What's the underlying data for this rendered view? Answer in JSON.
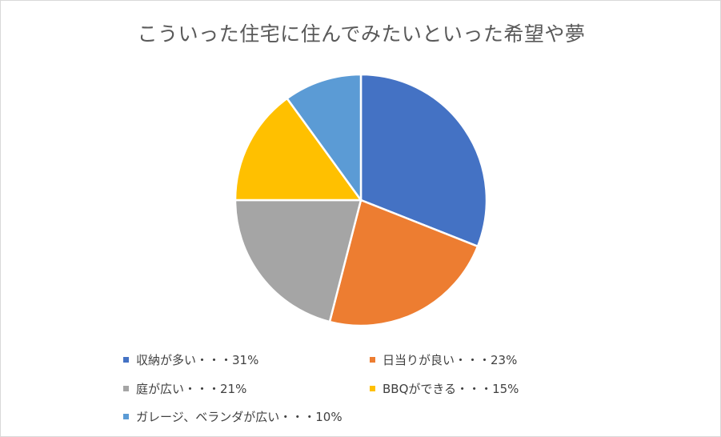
{
  "chart_data": {
    "type": "pie",
    "title": "こういった住宅に住んでみたいといった希望や夢",
    "categories": [
      "収納が多い・・・31%",
      "日当りが良い・・・23%",
      "庭が広い・・・21%",
      "BBQができる・・・15%",
      "ガレージ、ベランダが広い・・・10%"
    ],
    "values": [
      31,
      23,
      21,
      15,
      10
    ],
    "colors": [
      "#4472C4",
      "#ED7D31",
      "#A5A5A5",
      "#FFC000",
      "#5B9BD5"
    ],
    "start_angle": "12 o'clock",
    "direction": "clockwise",
    "legend_position": "bottom"
  }
}
